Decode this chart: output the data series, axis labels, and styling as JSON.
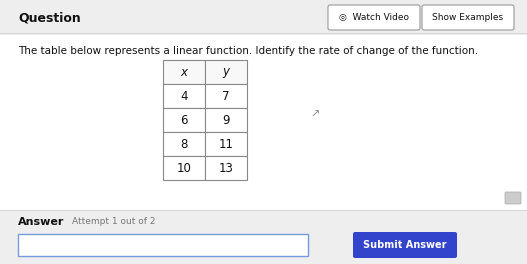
{
  "title_text": "Question",
  "body_text": "The table below represents a linear function. Identify the rate of change of the function.",
  "table_headers": [
    "x",
    "y"
  ],
  "table_data": [
    [
      4,
      7
    ],
    [
      6,
      9
    ],
    [
      8,
      11
    ],
    [
      10,
      13
    ]
  ],
  "answer_label": "Answer",
  "attempt_text": "Attempt 1 out of 2",
  "submit_button_text": "Submit Answer",
  "watch_video_text": "◎  Watch Video",
  "show_examples_text": "Show Examples",
  "bg_color": "#e8e8e8",
  "white_color": "#ffffff",
  "button_blue_color": "#3344cc",
  "table_border_color": "#888888",
  "text_color": "#111111",
  "gray_text": "#777777",
  "light_blue_input": "#dde8ff"
}
